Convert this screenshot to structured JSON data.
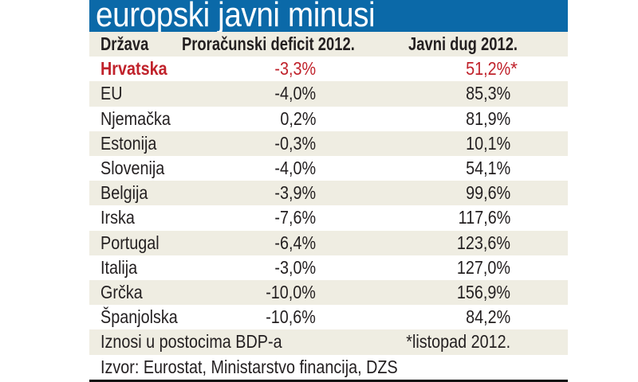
{
  "title": "europski javni minusi",
  "chart_data": {
    "type": "table",
    "title": "europski javni minusi",
    "columns": [
      "Država",
      "Proračunski deficit 2012.",
      "Javni dug 2012."
    ],
    "rows": [
      {
        "country": "Hrvatska",
        "deficit": "-3,3%",
        "debt": "51,2%",
        "debt_note": "*",
        "highlight": true
      },
      {
        "country": "EU",
        "deficit": "-4,0%",
        "debt": "85,3%"
      },
      {
        "country": "Njemačka",
        "deficit": "0,2%",
        "debt": "81,9%"
      },
      {
        "country": "Estonija",
        "deficit": "-0,3%",
        "debt": "10,1%"
      },
      {
        "country": "Slovenija",
        "deficit": "-4,0%",
        "debt": "54,1%"
      },
      {
        "country": "Belgija",
        "deficit": "-3,9%",
        "debt": "99,6%"
      },
      {
        "country": "Irska",
        "deficit": "-7,6%",
        "debt": "117,6%"
      },
      {
        "country": "Portugal",
        "deficit": "-6,4%",
        "debt": "123,6%"
      },
      {
        "country": "Italija",
        "deficit": "-3,0%",
        "debt": "127,0%"
      },
      {
        "country": "Grčka",
        "deficit": "-10,0%",
        "debt": "156,9%"
      },
      {
        "country": "Španjolska",
        "deficit": "-10,6%",
        "debt": "84,2%"
      }
    ]
  },
  "footer": {
    "units": "Iznosi u postocima BDP-a",
    "note": "*listopad 2012.",
    "source": "Izvor: Eurostat, Ministarstvo financija, DZS"
  },
  "colors": {
    "title_bg": "#0b69a8",
    "highlight": "#c0222b",
    "stripe": "#efede2"
  }
}
